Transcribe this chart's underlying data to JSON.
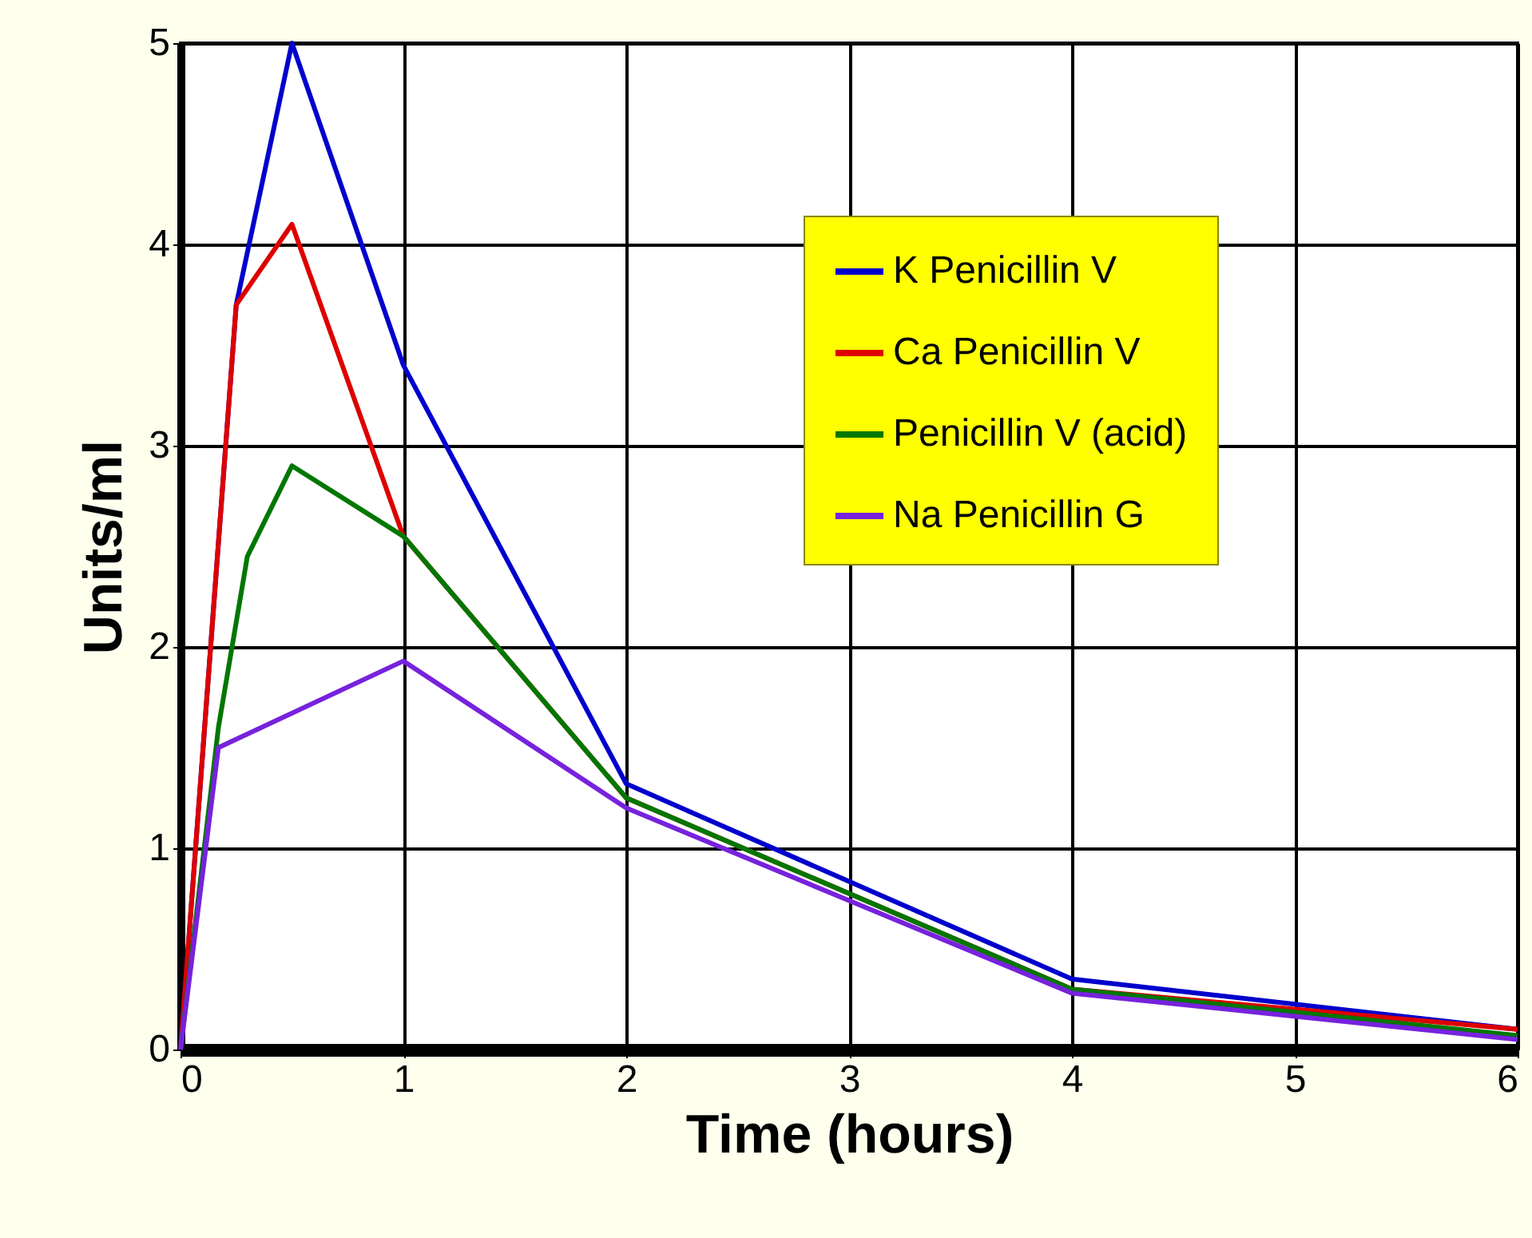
{
  "chart_data": {
    "type": "line",
    "xlabel": "Time (hours)",
    "ylabel": "Units/ml",
    "xlim": [
      0,
      6
    ],
    "ylim": [
      0,
      5
    ],
    "xticks": [
      0,
      1,
      2,
      3,
      4,
      5,
      6
    ],
    "yticks": [
      0,
      1,
      2,
      3,
      4,
      5
    ],
    "grid": true,
    "legend": "top right",
    "marker": "none",
    "line_style": "solid",
    "series": [
      {
        "name": "K Penicillin V",
        "color": "#0000cc",
        "x": [
          0,
          0.25,
          0.5,
          1,
          2,
          4,
          6
        ],
        "values": [
          0,
          3.7,
          5.0,
          3.4,
          1.32,
          0.35,
          0.1
        ]
      },
      {
        "name": "Ca Penicillin V",
        "color": "#dd0000",
        "x": [
          0,
          0.25,
          0.5,
          1,
          2,
          4,
          6
        ],
        "values": [
          0,
          3.7,
          4.1,
          2.55,
          1.25,
          0.3,
          0.1
        ]
      },
      {
        "name": "Penicillin V (acid)",
        "color": "#007700",
        "x": [
          0,
          0.17,
          0.3,
          0.5,
          1,
          2,
          4,
          6
        ],
        "values": [
          0,
          1.6,
          2.45,
          2.9,
          2.55,
          1.25,
          0.3,
          0.07
        ]
      },
      {
        "name": "Na Penicillin G",
        "color": "#7722dd",
        "x": [
          0,
          0.17,
          1,
          2,
          4,
          6
        ],
        "values": [
          0,
          1.5,
          1.93,
          1.2,
          0.28,
          0.05
        ]
      }
    ]
  }
}
